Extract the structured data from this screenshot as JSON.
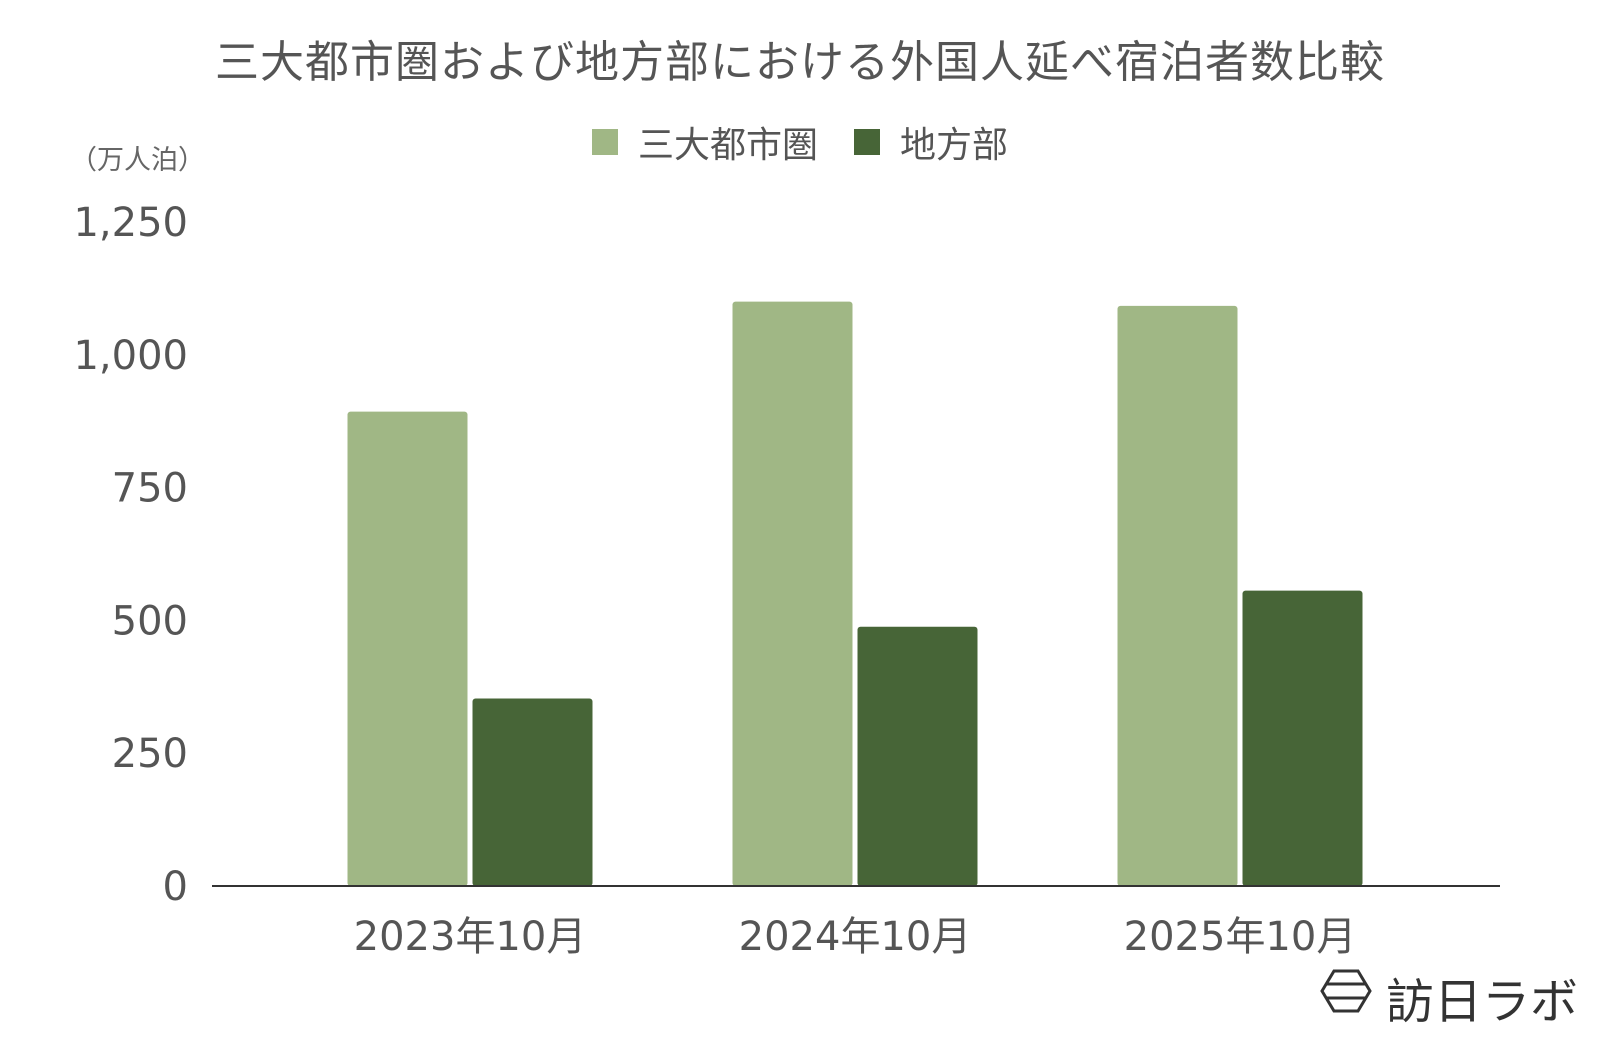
{
  "chart_data": {
    "type": "bar",
    "title": "三大都市圏および地方部における外国人延べ宿泊者数比較",
    "unit_label": "（万人泊）",
    "categories": [
      "2023年10月",
      "2024年10月",
      "2025年10月"
    ],
    "series": [
      {
        "name": "三大都市圏",
        "color": "#a0b785",
        "values": [
          893,
          1100,
          1092
        ]
      },
      {
        "name": "地方部",
        "color": "#476537",
        "values": [
          353,
          488,
          556
        ]
      }
    ],
    "ylim": [
      0,
      1250
    ],
    "yticks": [
      0,
      250,
      500,
      750,
      1000,
      1250
    ],
    "ytick_labels": [
      "0",
      "250",
      "500",
      "750",
      "1,000",
      "1,250"
    ],
    "grid": false,
    "legend_position": "top-center"
  },
  "watermark": {
    "text": "訪日ラボ",
    "icon": "hexagon-logo-icon"
  }
}
